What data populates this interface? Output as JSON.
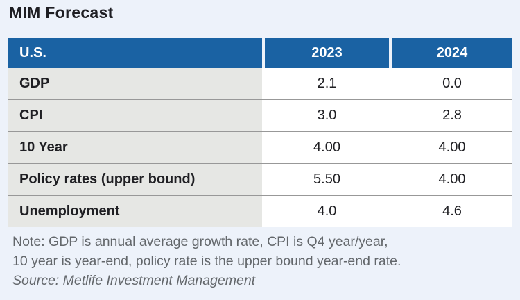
{
  "title": "MIM Forecast",
  "table": {
    "header": {
      "region": "U.S.",
      "col1": "2023",
      "col2": "2024"
    },
    "rows": [
      {
        "label": "GDP",
        "y2023": "2.1",
        "y2024": "0.0"
      },
      {
        "label": "CPI",
        "y2023": "3.0",
        "y2024": "2.8"
      },
      {
        "label": "10 Year",
        "y2023": "4.00",
        "y2024": "4.00"
      },
      {
        "label": "Policy rates (upper bound)",
        "y2023": "5.50",
        "y2024": "4.00"
      },
      {
        "label": "Unemployment",
        "y2023": "4.0",
        "y2024": "4.6"
      }
    ]
  },
  "note": {
    "line1": "Note: GDP is annual average growth rate, CPI is Q4 year/year,",
    "line2": "10 year is year-end, policy rate is the upper bound year-end rate.",
    "source": "Source: Metlife Investment Management"
  },
  "colors": {
    "page_bg": "#edf2fa",
    "header_bg": "#1a62a3",
    "header_text": "#ffffff",
    "label_bg": "#e6e7e4",
    "row_bg": "#ffffff",
    "divider": "#989898",
    "body_text": "#1f1f23",
    "note_text": "#63676b"
  },
  "chart_data": {
    "type": "table",
    "title": "MIM Forecast",
    "columns": [
      "U.S.",
      "2023",
      "2024"
    ],
    "rows": [
      [
        "GDP",
        "2.1",
        "0.0"
      ],
      [
        "CPI",
        "3.0",
        "2.8"
      ],
      [
        "10 Year",
        "4.00",
        "4.00"
      ],
      [
        "Policy rates (upper bound)",
        "5.50",
        "4.00"
      ],
      [
        "Unemployment",
        "4.0",
        "4.6"
      ]
    ],
    "note": "Note: GDP is annual average growth rate, CPI is Q4 year/year, 10 year is year-end, policy rate is the upper bound year-end rate.",
    "source": "Source: Metlife Investment Management"
  }
}
